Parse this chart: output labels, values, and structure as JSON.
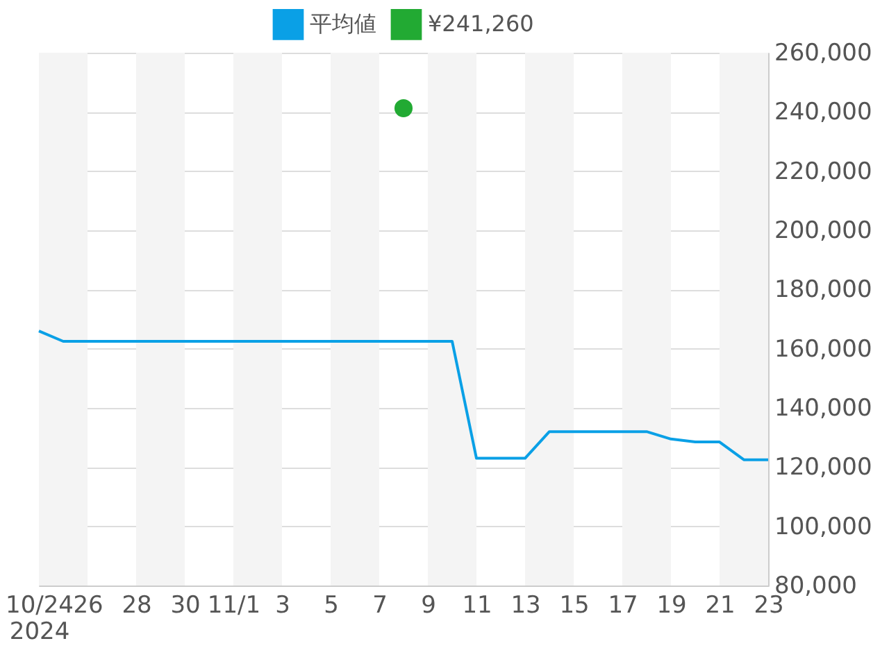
{
  "chart_data": {
    "type": "line",
    "x": [
      "2024-10-24",
      "2024-10-25",
      "2024-10-26",
      "2024-10-27",
      "2024-10-28",
      "2024-10-29",
      "2024-10-30",
      "2024-10-31",
      "2024-11-01",
      "2024-11-02",
      "2024-11-03",
      "2024-11-04",
      "2024-11-05",
      "2024-11-06",
      "2024-11-07",
      "2024-11-08",
      "2024-11-09",
      "2024-11-10",
      "2024-11-11",
      "2024-11-12",
      "2024-11-13",
      "2024-11-14",
      "2024-11-15",
      "2024-11-16",
      "2024-11-17",
      "2024-11-18",
      "2024-11-19",
      "2024-11-20",
      "2024-11-21",
      "2024-11-22",
      "2024-11-23"
    ],
    "series": [
      {
        "name": "平均値",
        "color": "#0aa0e6",
        "values": [
          166000,
          162500,
          162500,
          162500,
          162500,
          162500,
          162500,
          162500,
          162500,
          162500,
          162500,
          162500,
          162500,
          162500,
          162500,
          162500,
          162500,
          162500,
          123000,
          123000,
          123000,
          132000,
          132000,
          132000,
          132000,
          132000,
          129500,
          128500,
          128500,
          122500,
          122500
        ]
      },
      {
        "name": "¥241,260",
        "type": "scatter",
        "color": "#22aa33",
        "x": [
          "2024-11-08"
        ],
        "values": [
          241260
        ]
      }
    ],
    "xlim": [
      "2024-10-24",
      "2024-11-23"
    ],
    "xticks": [
      {
        "value": "2024-10-24",
        "label": "10/24\n2024"
      },
      {
        "value": "2024-10-26",
        "label": "26"
      },
      {
        "value": "2024-10-28",
        "label": "28"
      },
      {
        "value": "2024-10-30",
        "label": "30"
      },
      {
        "value": "2024-11-01",
        "label": "11/1"
      },
      {
        "value": "2024-11-03",
        "label": "3"
      },
      {
        "value": "2024-11-05",
        "label": "5"
      },
      {
        "value": "2024-11-07",
        "label": "7"
      },
      {
        "value": "2024-11-09",
        "label": "9"
      },
      {
        "value": "2024-11-11",
        "label": "11"
      },
      {
        "value": "2024-11-13",
        "label": "13"
      },
      {
        "value": "2024-11-15",
        "label": "15"
      },
      {
        "value": "2024-11-17",
        "label": "17"
      },
      {
        "value": "2024-11-19",
        "label": "19"
      },
      {
        "value": "2024-11-21",
        "label": "21"
      },
      {
        "value": "2024-11-23",
        "label": "23"
      }
    ],
    "ylim": [
      80000,
      260000
    ],
    "yticks": [
      {
        "value": 80000,
        "label": "80,000"
      },
      {
        "value": 100000,
        "label": "100,000"
      },
      {
        "value": 120000,
        "label": "120,000"
      },
      {
        "value": 140000,
        "label": "140,000"
      },
      {
        "value": 160000,
        "label": "160,000"
      },
      {
        "value": 180000,
        "label": "180,000"
      },
      {
        "value": 200000,
        "label": "200,000"
      },
      {
        "value": 220000,
        "label": "220,000"
      },
      {
        "value": 240000,
        "label": "240,000"
      },
      {
        "value": 260000,
        "label": "260,000"
      }
    ],
    "bands": [
      {
        "axis": "x",
        "from": "2024-10-24",
        "to": "2024-10-26",
        "color": "#f4f4f4"
      },
      {
        "axis": "x",
        "from": "2024-10-28",
        "to": "2024-10-30",
        "color": "#f4f4f4"
      },
      {
        "axis": "x",
        "from": "2024-11-01",
        "to": "2024-11-03",
        "color": "#f4f4f4"
      },
      {
        "axis": "x",
        "from": "2024-11-05",
        "to": "2024-11-07",
        "color": "#f4f4f4"
      },
      {
        "axis": "x",
        "from": "2024-11-09",
        "to": "2024-11-11",
        "color": "#f4f4f4"
      },
      {
        "axis": "x",
        "from": "2024-11-13",
        "to": "2024-11-15",
        "color": "#f4f4f4"
      },
      {
        "axis": "x",
        "from": "2024-11-17",
        "to": "2024-11-19",
        "color": "#f4f4f4"
      },
      {
        "axis": "x",
        "from": "2024-11-21",
        "to": "2024-11-23",
        "color": "#f4f4f4"
      }
    ],
    "grid": "y",
    "legend": "top"
  }
}
